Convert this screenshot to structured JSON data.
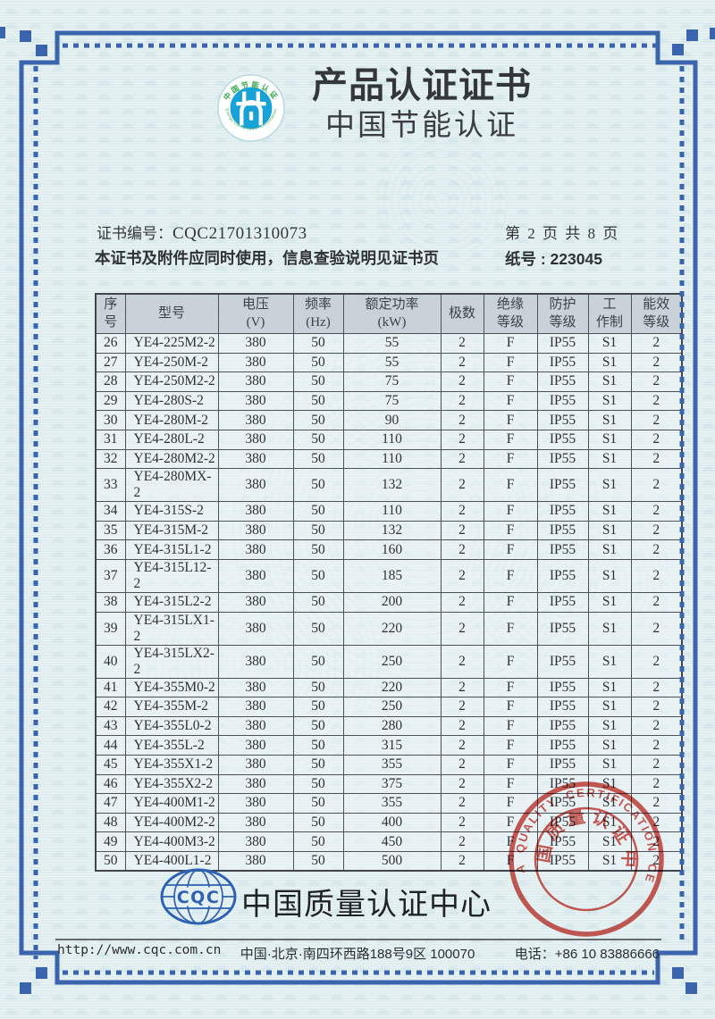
{
  "header": {
    "title": "产品认证证书",
    "subtitle": "中国节能认证",
    "energy_logo": {
      "top_text": "中国节能认证",
      "bottom_text": "Energy Conservation Certification"
    }
  },
  "meta": {
    "cert_no_label": "证书编号：",
    "cert_no": "CQC21701310073",
    "page_indicator": "第 2 页 共 8 页",
    "usage_note": "本证书及附件应同时使用，信息查验说明见证书页",
    "paper_no": "纸号 : 223045"
  },
  "table": {
    "header_rows": [
      [
        "序\n号",
        "型号",
        "电压\n(V)",
        "频率\n(Hz)",
        "额定功率\n(kW)",
        "极数",
        "绝缘\n等级",
        "防护\n等级",
        "工\n作制",
        "能效\n等级"
      ]
    ],
    "rows": [
      [
        "26",
        "YE4-225M2-2",
        "380",
        "50",
        "55",
        "2",
        "F",
        "IP55",
        "S1",
        "2"
      ],
      [
        "27",
        "YE4-250M-2",
        "380",
        "50",
        "55",
        "2",
        "F",
        "IP55",
        "S1",
        "2"
      ],
      [
        "28",
        "YE4-250M2-2",
        "380",
        "50",
        "75",
        "2",
        "F",
        "IP55",
        "S1",
        "2"
      ],
      [
        "29",
        "YE4-280S-2",
        "380",
        "50",
        "75",
        "2",
        "F",
        "IP55",
        "S1",
        "2"
      ],
      [
        "30",
        "YE4-280M-2",
        "380",
        "50",
        "90",
        "2",
        "F",
        "IP55",
        "S1",
        "2"
      ],
      [
        "31",
        "YE4-280L-2",
        "380",
        "50",
        "110",
        "2",
        "F",
        "IP55",
        "S1",
        "2"
      ],
      [
        "32",
        "YE4-280M2-2",
        "380",
        "50",
        "110",
        "2",
        "F",
        "IP55",
        "S1",
        "2"
      ],
      [
        "33",
        "YE4-280MX-2",
        "380",
        "50",
        "132",
        "2",
        "F",
        "IP55",
        "S1",
        "2"
      ],
      [
        "34",
        "YE4-315S-2",
        "380",
        "50",
        "110",
        "2",
        "F",
        "IP55",
        "S1",
        "2"
      ],
      [
        "35",
        "YE4-315M-2",
        "380",
        "50",
        "132",
        "2",
        "F",
        "IP55",
        "S1",
        "2"
      ],
      [
        "36",
        "YE4-315L1-2",
        "380",
        "50",
        "160",
        "2",
        "F",
        "IP55",
        "S1",
        "2"
      ],
      [
        "37",
        "YE4-315L12-2",
        "380",
        "50",
        "185",
        "2",
        "F",
        "IP55",
        "S1",
        "2"
      ],
      [
        "38",
        "YE4-315L2-2",
        "380",
        "50",
        "200",
        "2",
        "F",
        "IP55",
        "S1",
        "2"
      ],
      [
        "39",
        "YE4-315LX1-2",
        "380",
        "50",
        "220",
        "2",
        "F",
        "IP55",
        "S1",
        "2"
      ],
      [
        "40",
        "YE4-315LX2-2",
        "380",
        "50",
        "250",
        "2",
        "F",
        "IP55",
        "S1",
        "2"
      ],
      [
        "41",
        "YE4-355M0-2",
        "380",
        "50",
        "220",
        "2",
        "F",
        "IP55",
        "S1",
        "2"
      ],
      [
        "42",
        "YE4-355M-2",
        "380",
        "50",
        "250",
        "2",
        "F",
        "IP55",
        "S1",
        "2"
      ],
      [
        "43",
        "YE4-355L0-2",
        "380",
        "50",
        "280",
        "2",
        "F",
        "IP55",
        "S1",
        "2"
      ],
      [
        "44",
        "YE4-355L-2",
        "380",
        "50",
        "315",
        "2",
        "F",
        "IP55",
        "S1",
        "2"
      ],
      [
        "45",
        "YE4-355X1-2",
        "380",
        "50",
        "355",
        "2",
        "F",
        "IP55",
        "S1",
        "2"
      ],
      [
        "46",
        "YE4-355X2-2",
        "380",
        "50",
        "375",
        "2",
        "F",
        "IP55",
        "S1",
        "2"
      ],
      [
        "47",
        "YE4-400M1-2",
        "380",
        "50",
        "355",
        "2",
        "F",
        "IP55",
        "S1",
        "2"
      ],
      [
        "48",
        "YE4-400M2-2",
        "380",
        "50",
        "400",
        "2",
        "F",
        "IP55",
        "S1",
        "2"
      ],
      [
        "49",
        "YE4-400M3-2",
        "380",
        "50",
        "450",
        "2",
        "F",
        "IP55",
        "S1",
        "2"
      ],
      [
        "50",
        "YE4-400L1-2",
        "380",
        "50",
        "500",
        "2",
        "F",
        "IP55",
        "S1",
        "2"
      ]
    ]
  },
  "stamp": {
    "outer_text": "CHINA QUALITY CERTIFICATION CENTRE",
    "inner_text": "中国质量认证中心"
  },
  "footer": {
    "logo_text": "CQC",
    "org_name": "中国质量认证中心",
    "url": "http://www.cqc.com.cn",
    "address": "中国·北京·南四环西路188号9区  100070",
    "phone": "电话：+86 10 83886666"
  },
  "colors": {
    "border_blue": "#3a64ad",
    "seal_red": "#d14a44",
    "cqc_blue": "#2e62b1",
    "energy_blue": "#17a3d8",
    "energy_green": "#3aa64c",
    "paper": "#e0edef"
  }
}
